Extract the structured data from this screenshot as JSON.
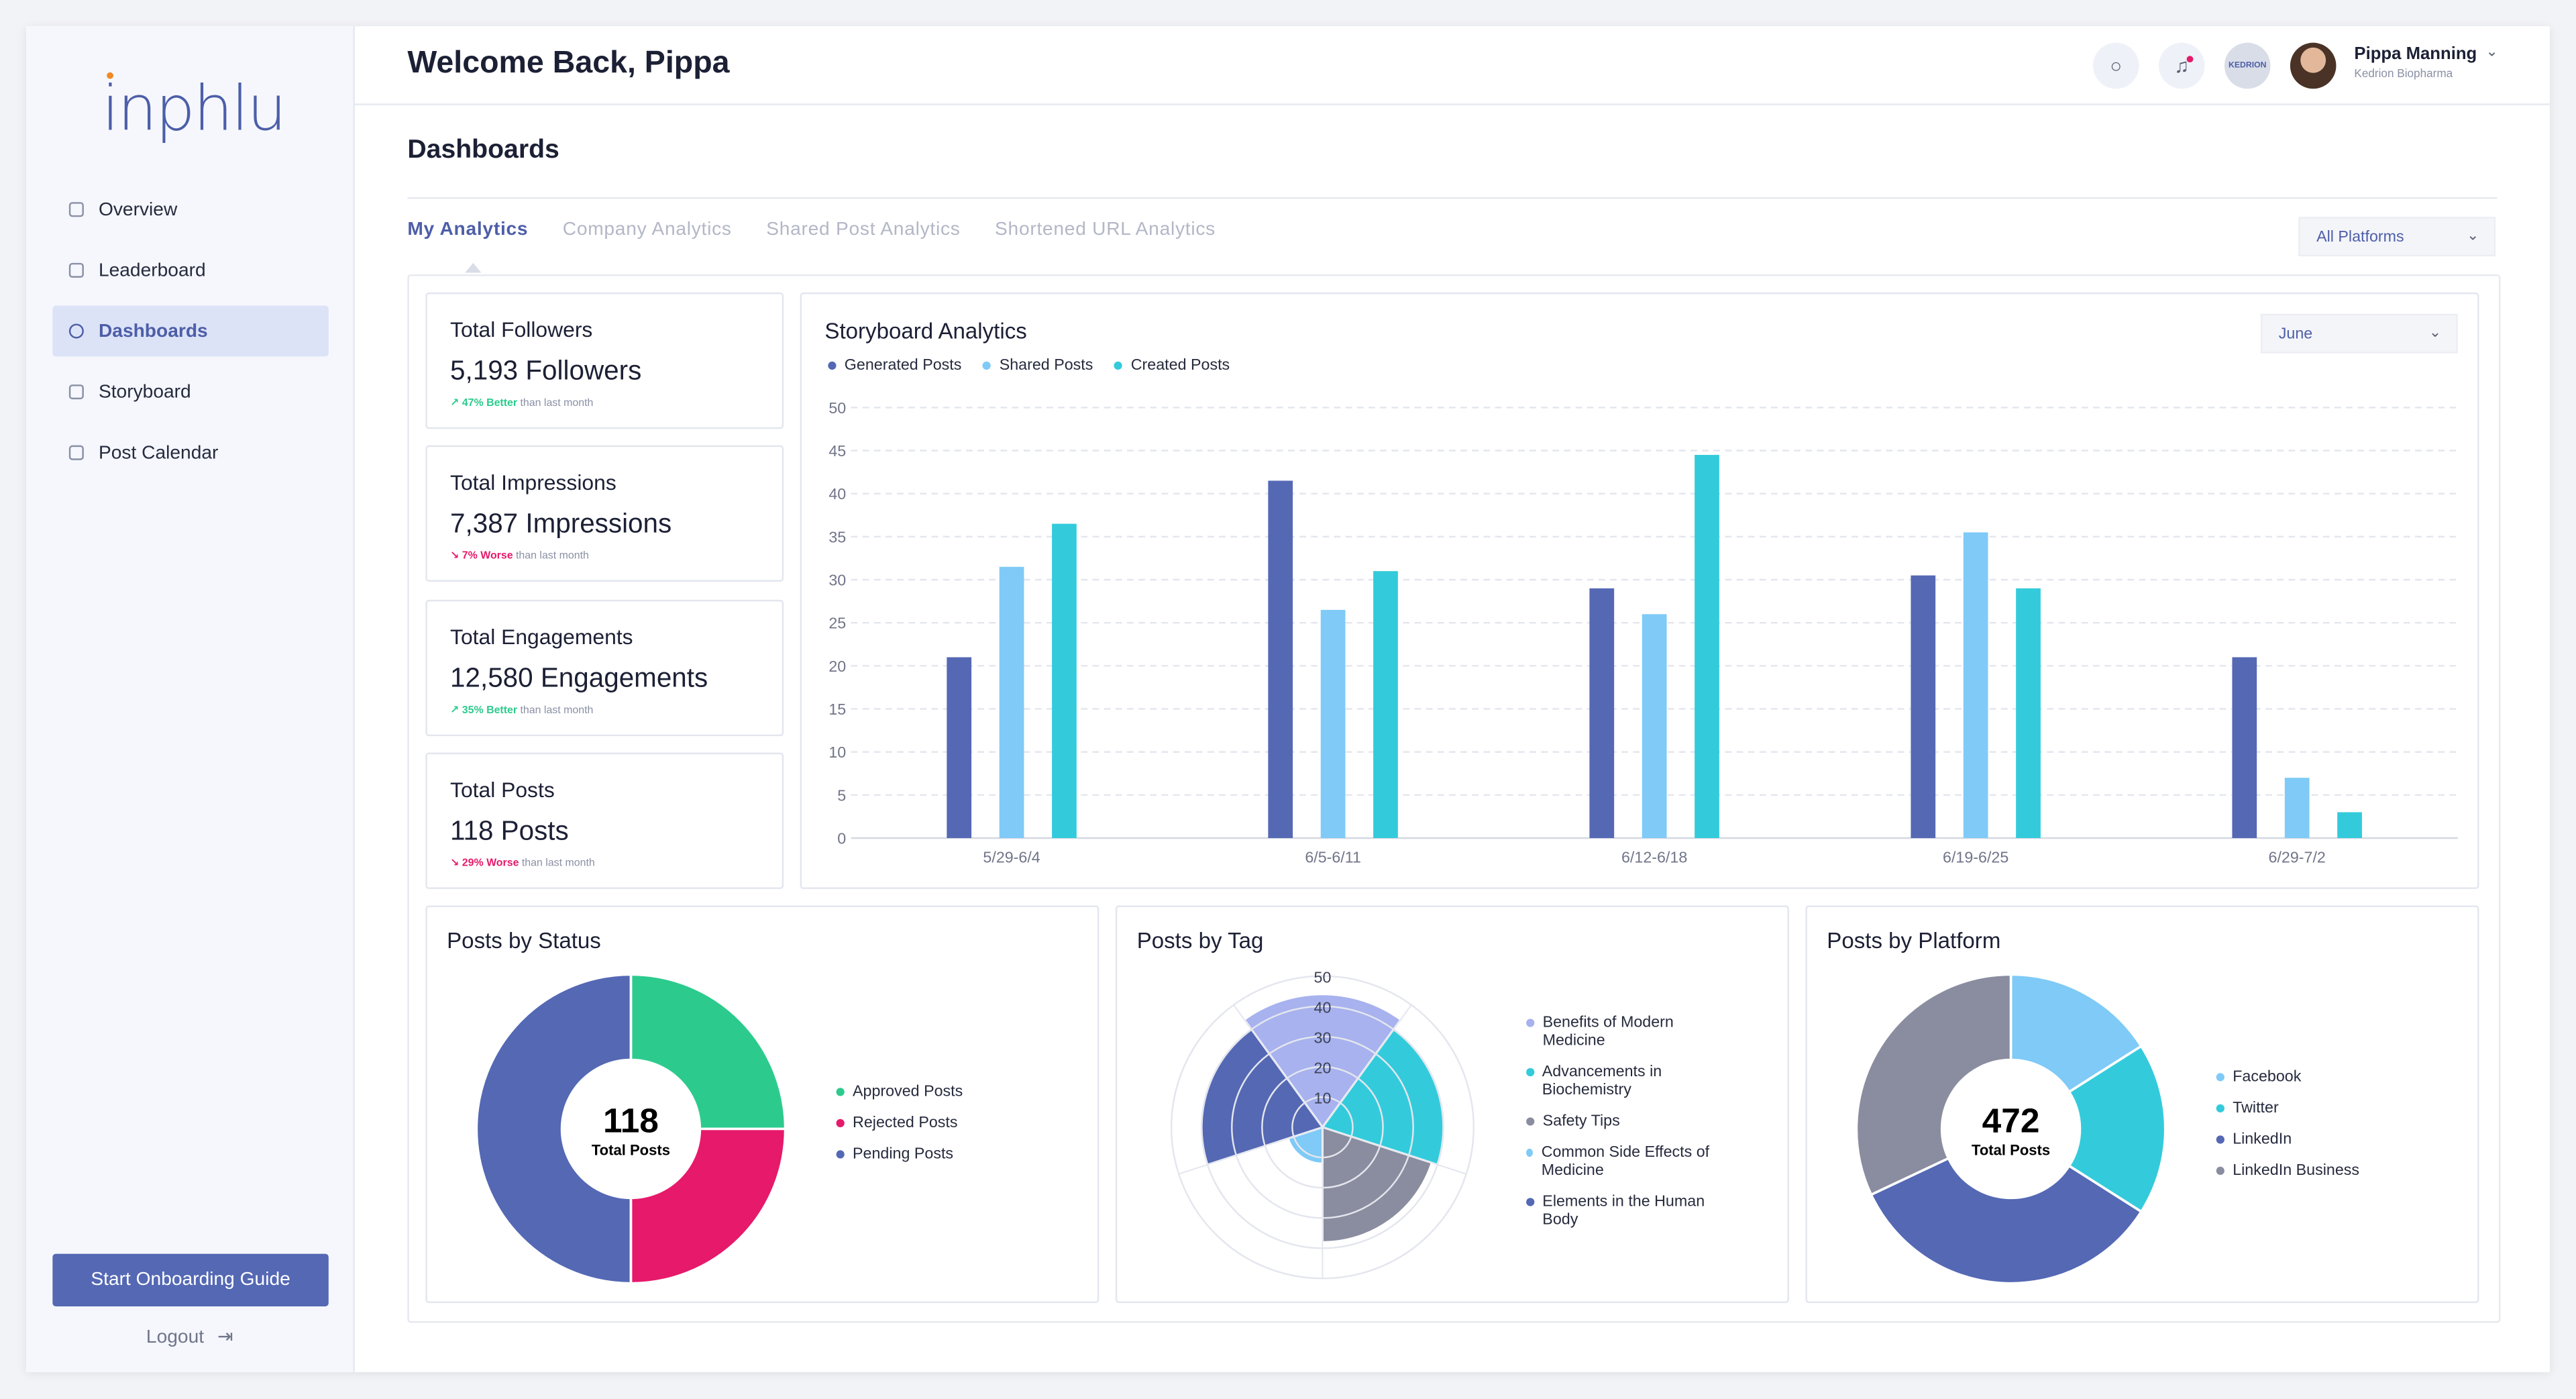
{
  "brand": {
    "logo_text": "inphlu"
  },
  "sidebar": {
    "items": [
      {
        "label": "Overview",
        "icon": "home-icon",
        "active": false
      },
      {
        "label": "Leaderboard",
        "icon": "trophy-icon",
        "active": false
      },
      {
        "label": "Dashboards",
        "icon": "clock-icon",
        "active": true
      },
      {
        "label": "Storyboard",
        "icon": "document-icon",
        "active": false
      },
      {
        "label": "Post Calendar",
        "icon": "calendar-icon",
        "active": false
      }
    ],
    "onboarding_button": "Start Onboarding Guide",
    "logout_label": "Logout"
  },
  "header": {
    "welcome": "Welcome Back, Pippa",
    "company_logo_text": "KEDRION",
    "user_name": "Pippa Manning",
    "user_company": "Kedrion Biopharma"
  },
  "page": {
    "title": "Dashboards",
    "tabs": [
      "My Analytics",
      "Company Analytics",
      "Shared Post Analytics",
      "Shortened URL Analytics"
    ],
    "active_tab": 0,
    "platform_filter": "All Platforms"
  },
  "stats": [
    {
      "title": "Total Followers",
      "value": "5,193 Followers",
      "delta": "↗ 47% Better",
      "trend": "good",
      "suffix": " than last month"
    },
    {
      "title": "Total Impressions",
      "value": "7,387 Impressions",
      "delta": "↘ 7% Worse",
      "trend": "bad",
      "suffix": " than last month"
    },
    {
      "title": "Total Engagements",
      "value": "12,580 Engagements",
      "delta": "↗ 35% Better",
      "trend": "good",
      "suffix": " than last month"
    },
    {
      "title": "Total Posts",
      "value": "118 Posts",
      "delta": "↘ 29% Worse",
      "trend": "bad",
      "suffix": " than last month"
    }
  ],
  "storyboard": {
    "title": "Storyboard Analytics",
    "month": "June"
  },
  "posts_by_status": {
    "title": "Posts by Status",
    "center_value": "118",
    "center_label": "Total Posts"
  },
  "posts_by_tag": {
    "title": "Posts by Tag"
  },
  "posts_by_platform": {
    "title": "Posts by Platform",
    "center_value": "472",
    "center_label": "Total Posts"
  },
  "colors": {
    "generated": "#5468b4",
    "shared": "#7fcaf7",
    "created": "#33cbdb",
    "approved": "#2ccb8d",
    "rejected": "#e6196a",
    "pending": "#5468b4",
    "gray": "#8a8d9f",
    "lavender": "#a7b2ee"
  },
  "chart_data": [
    {
      "type": "bar",
      "title": "Storyboard Analytics",
      "categories": [
        "5/29-6/4",
        "6/5-6/11",
        "6/12-6/18",
        "6/19-6/25",
        "6/29-7/2"
      ],
      "series": [
        {
          "name": "Generated Posts",
          "values": [
            21,
            41.5,
            29,
            30.5,
            21
          ]
        },
        {
          "name": "Shared Posts",
          "values": [
            31.5,
            26.5,
            26,
            35.5,
            7
          ]
        },
        {
          "name": "Created Posts",
          "values": [
            36.5,
            31,
            44.5,
            29,
            3
          ]
        }
      ],
      "ylim": [
        0,
        50
      ],
      "yticks": [
        0,
        5,
        10,
        15,
        20,
        25,
        30,
        35,
        40,
        45,
        50
      ],
      "grid": true,
      "legend": "top-left"
    },
    {
      "type": "pie",
      "title": "Posts by Status",
      "labels": [
        "Approved Posts",
        "Rejected Posts",
        "Pending Posts"
      ],
      "values": [
        25,
        25,
        50
      ],
      "legend": "right"
    },
    {
      "type": "polar-area",
      "title": "Posts by Tag",
      "labels": [
        "Benefits of Modern Medicine",
        "Advancements in Biochemistry",
        "Safety Tips",
        "Common Side Effects of Medicine",
        "Elements in the Human Body"
      ],
      "values": [
        44,
        40,
        38,
        12,
        40
      ],
      "rlim": [
        0,
        50
      ],
      "rticks": [
        10,
        20,
        30,
        40,
        50
      ],
      "legend": "right"
    },
    {
      "type": "pie",
      "title": "Posts by Platform",
      "labels": [
        "Facebook",
        "Twitter",
        "LinkedIn",
        "LinkedIn Business"
      ],
      "values": [
        16,
        18,
        34,
        32
      ],
      "legend": "right"
    }
  ]
}
